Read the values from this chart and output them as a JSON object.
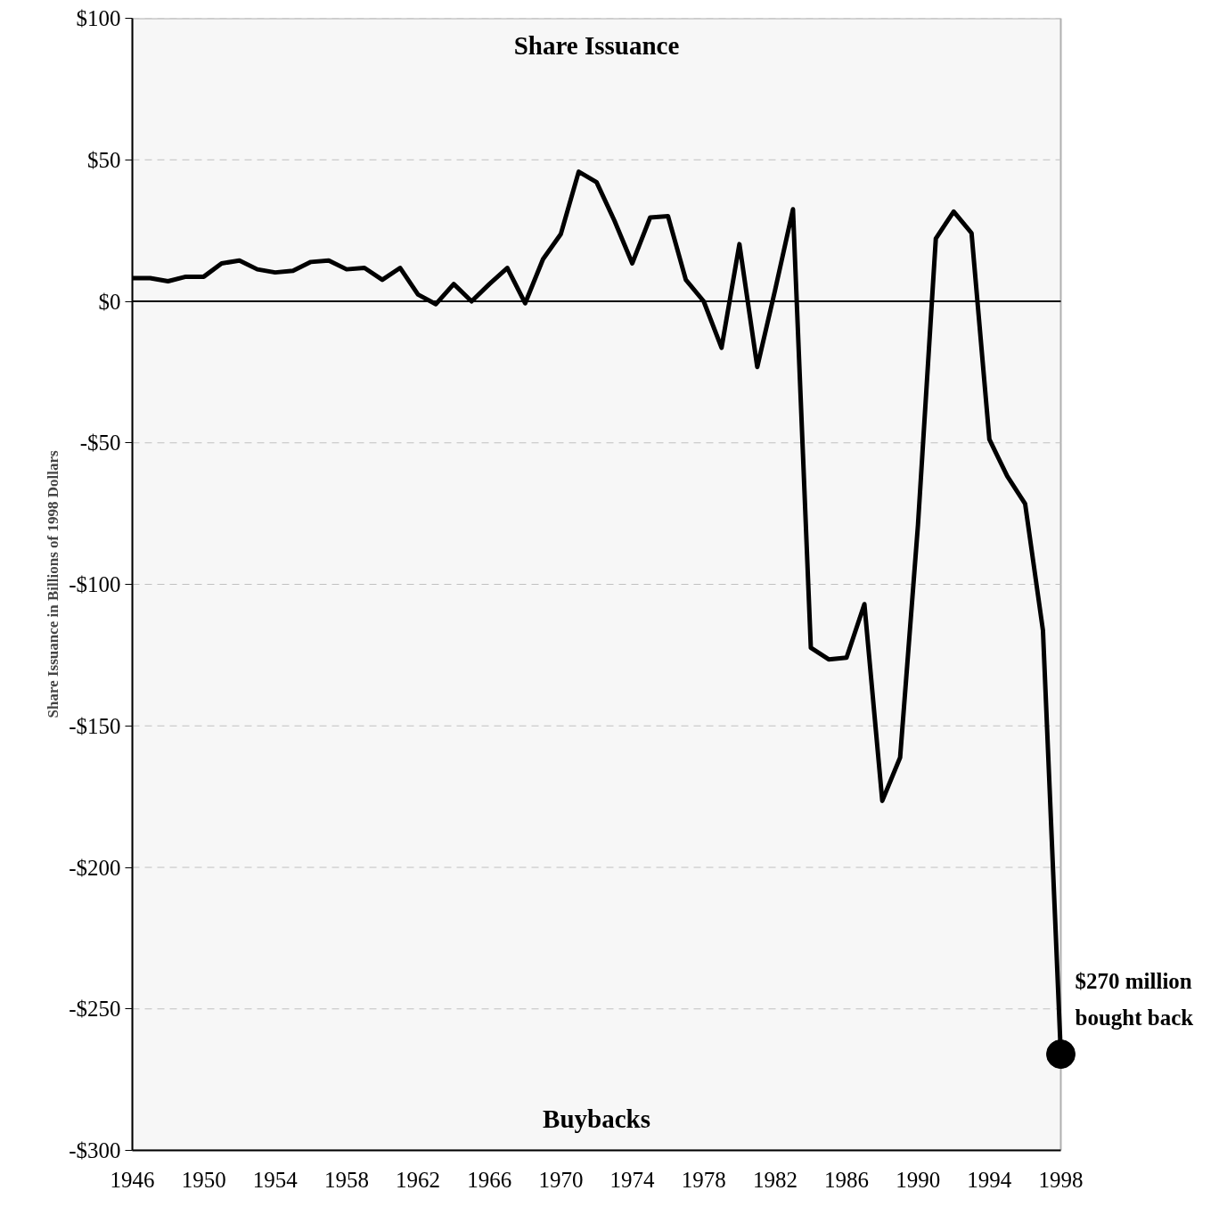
{
  "chart_data": {
    "type": "line",
    "ylabel": "Share Issuance in Billions of 1998 Dollars",
    "x": [
      1946,
      1947,
      1948,
      1949,
      1950,
      1951,
      1952,
      1953,
      1954,
      1955,
      1956,
      1957,
      1958,
      1959,
      1960,
      1961,
      1962,
      1963,
      1964,
      1965,
      1966,
      1967,
      1968,
      1969,
      1970,
      1971,
      1972,
      1973,
      1974,
      1975,
      1976,
      1977,
      1978,
      1979,
      1980,
      1981,
      1982,
      1983,
      1984,
      1985,
      1986,
      1987,
      1988,
      1989,
      1990,
      1991,
      1992,
      1993,
      1994,
      1995,
      1996,
      1997,
      1998
    ],
    "series": [
      {
        "type": "line",
        "color": "#000000",
        "marker": "none",
        "values": [
          8.2,
          8.2,
          7.1,
          8.7,
          8.7,
          13.4,
          14.4,
          11.3,
          10.2,
          10.8,
          13.9,
          14.4,
          11.3,
          11.8,
          7.6,
          11.8,
          2.4,
          -1.0,
          6.1,
          0,
          6.1,
          11.8,
          -0.7,
          14.9,
          23.8,
          45.8,
          42.1,
          28.5,
          13.4,
          29.6,
          30.1,
          7.6,
          0,
          -16.4,
          20.2,
          -23.2,
          4,
          32.5,
          -122.4,
          -126.5,
          -125.9,
          -107,
          -176.5,
          -161.2,
          -79,
          22.2,
          31.7,
          24.1,
          -48.8,
          -61.8,
          -71.5,
          -116.3,
          -266
        ]
      },
      {
        "type": "scatter",
        "color": "#000000",
        "marker": "circle",
        "x": [
          1998
        ],
        "values": [
          -266
        ]
      }
    ],
    "xlim": [
      1946,
      1998
    ],
    "xticks": [
      1946,
      1950,
      1954,
      1958,
      1962,
      1966,
      1970,
      1974,
      1978,
      1982,
      1986,
      1990,
      1994,
      1998
    ],
    "ylim": [
      -300,
      100
    ],
    "yticks": [
      {
        "value": 100,
        "label": "$100"
      },
      {
        "value": 50,
        "label": "$50"
      },
      {
        "value": 0,
        "label": "$0"
      },
      {
        "value": -50,
        "label": "-$50"
      },
      {
        "value": -100,
        "label": "-$100"
      },
      {
        "value": -150,
        "label": "-$150"
      },
      {
        "value": -200,
        "label": "-$200"
      },
      {
        "value": -250,
        "label": "-$250"
      },
      {
        "value": -300,
        "label": "-$300"
      }
    ],
    "grid": "y",
    "ref_lines": [
      {
        "axis": "y",
        "value": 0,
        "color": "#000000",
        "line_style": "solid"
      }
    ],
    "annotations": [
      "Share Issuance",
      "Buybacks",
      {
        "text": "$270 million\nbought back",
        "x": 1998,
        "y": -266
      }
    ]
  }
}
